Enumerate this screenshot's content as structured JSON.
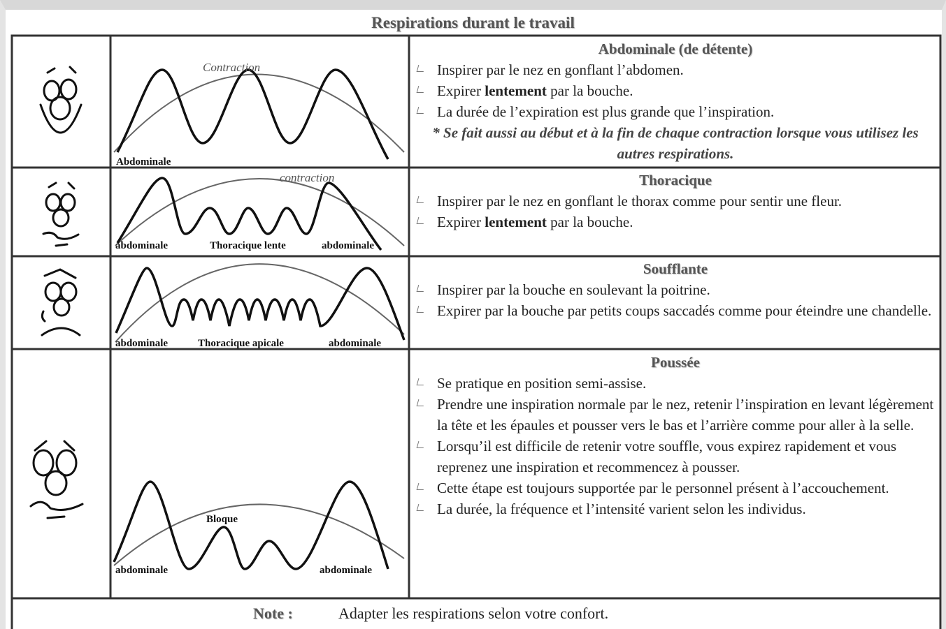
{
  "title": "Respirations durant le travail",
  "rows": [
    {
      "diagram_labels": [
        "Contraction",
        "Abdominale"
      ],
      "heading": "Abdominale (de détente)",
      "bullets": [
        "Inspirer par le nez en gonflant l’abdomen.",
        {
          "before": "Expirer ",
          "bold": "lentement",
          "after": " par la bouche."
        },
        "La durée de l’expiration est plus grande que l’inspiration."
      ],
      "note": "* Se fait aussi au début et à la fin de chaque contraction lorsque vous utilisez les autres respirations."
    },
    {
      "diagram_labels": [
        "contraction",
        "abdominale",
        "Thoracique lente",
        "abdominale"
      ],
      "heading": "Thoracique",
      "bullets": [
        "Inspirer par le nez en gonflant le thorax comme pour sentir une fleur.",
        {
          "before": "Expirer ",
          "bold": "lentement",
          "after": " par la bouche."
        }
      ]
    },
    {
      "diagram_labels": [
        "abdominale",
        "Thoracique apicale",
        "abdominale"
      ],
      "heading": "Soufflante",
      "bullets": [
        "Inspirer par la bouche en soulevant la poitrine.",
        "Expirer par la bouche par petits coups saccadés comme pour éteindre une chandelle."
      ]
    },
    {
      "diagram_labels": [
        "Bloque",
        "abdominale",
        "abdominale"
      ],
      "heading": "Poussée",
      "bullets": [
        "Se pratique en position semi-assise.",
        "Prendre une inspiration normale par le nez, retenir l’inspiration en levant légèrement la tête et les épaules et pousser vers le bas et l’arrière comme pour aller à la selle.",
        "Lorsqu’il est difficile de retenir votre souffle, vous expirez rapidement et vous reprenez une inspiration et recommencez à pousser.",
        "Cette étape est toujours supportée par le personnel présent à l’accouchement.",
        "La durée, la fréquence et l’intensité varient selon les individus."
      ]
    }
  ],
  "footer": {
    "label": "Note :",
    "text": "Adapter les respirations selon votre confort."
  }
}
